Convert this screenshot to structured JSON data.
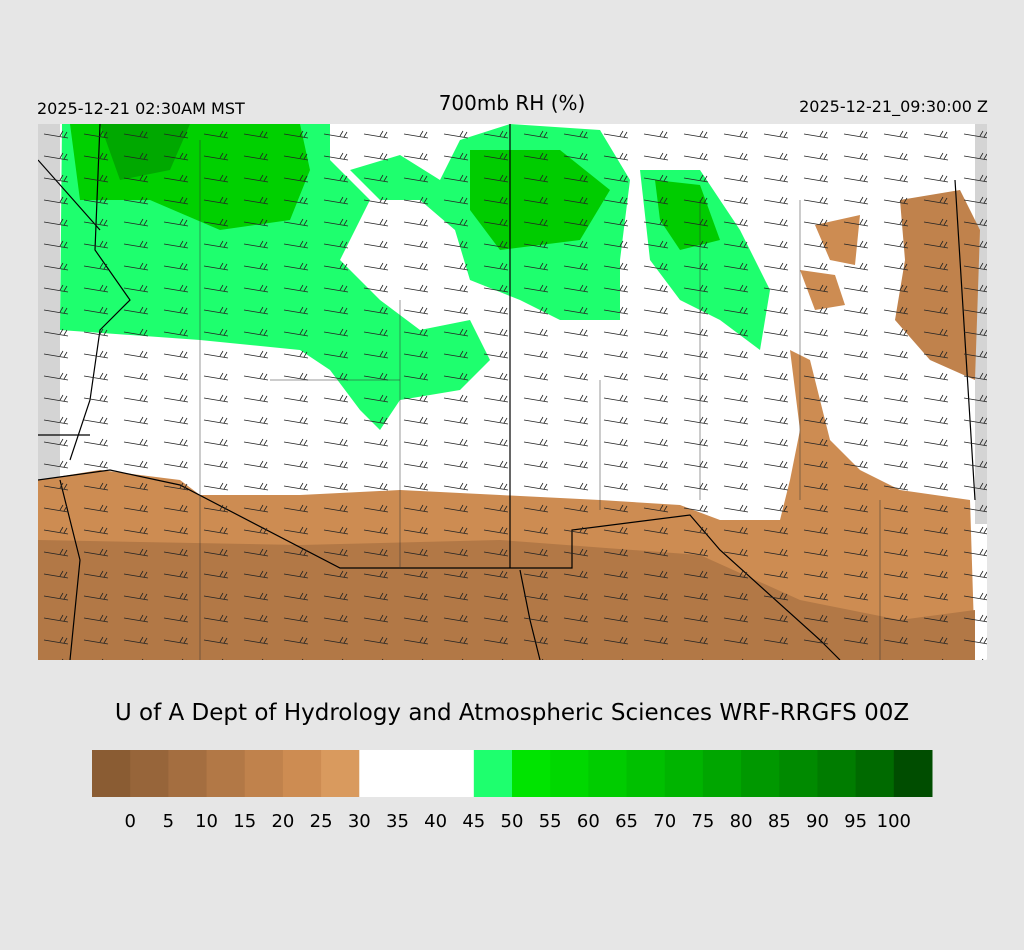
{
  "header": {
    "left": "2025-12-21 02:30AM MST",
    "title": "700mb RH (%)",
    "right": "2025-12-21_09:30:00 Z"
  },
  "credit": "U of A Dept of Hydrology and Atmospheric Sciences WRF-RRGFS 00Z",
  "colorbar": {
    "colors": [
      "#8a5c33",
      "#97653a",
      "#a46e40",
      "#b27846",
      "#c0824c",
      "#cd8c52",
      "#d99a5e",
      "#ffffff",
      "#ffffff",
      "#ffffff",
      "#1eff6e",
      "#00e400",
      "#00d800",
      "#00cc00",
      "#00c000",
      "#00b400",
      "#00a600",
      "#009800",
      "#008a00",
      "#007c00",
      "#006a00",
      "#004d00"
    ],
    "labels": [
      0,
      5,
      10,
      15,
      20,
      25,
      30,
      35,
      40,
      45,
      50,
      55,
      60,
      65,
      70,
      75,
      80,
      85,
      90,
      95,
      100
    ]
  }
}
